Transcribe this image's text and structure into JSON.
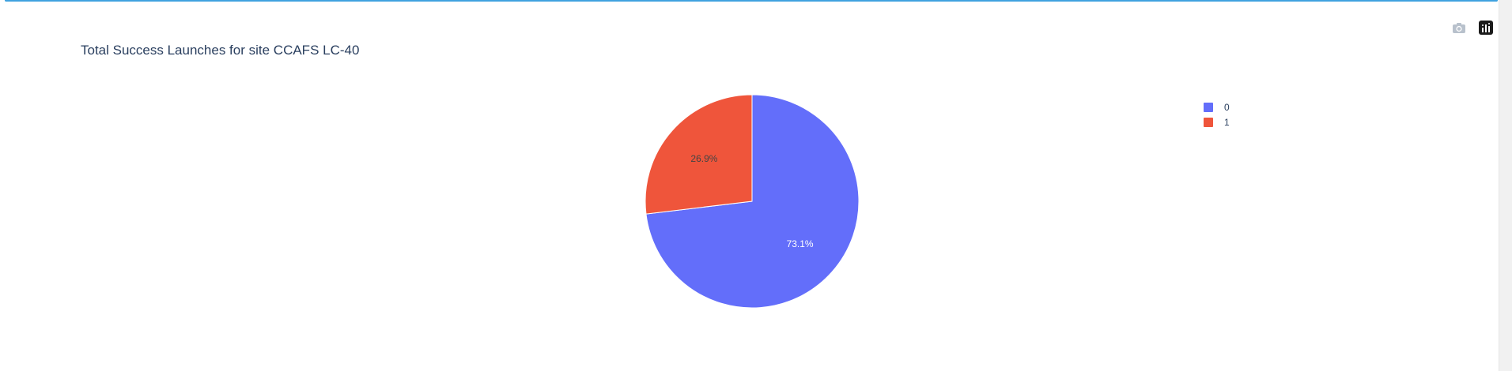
{
  "chart_data": {
    "type": "pie",
    "title": "Total Success Launches for site CCAFS LC-40",
    "categories": [
      "0",
      "1"
    ],
    "values": [
      73.1,
      26.9
    ],
    "labels": [
      "73.1%",
      "26.9%"
    ],
    "colors": [
      "#636efa",
      "#ef553b"
    ],
    "legend_position": "top-right"
  },
  "modebar": {
    "camera_icon": "camera-icon",
    "plotly_logo": "plotly-logo-icon"
  }
}
